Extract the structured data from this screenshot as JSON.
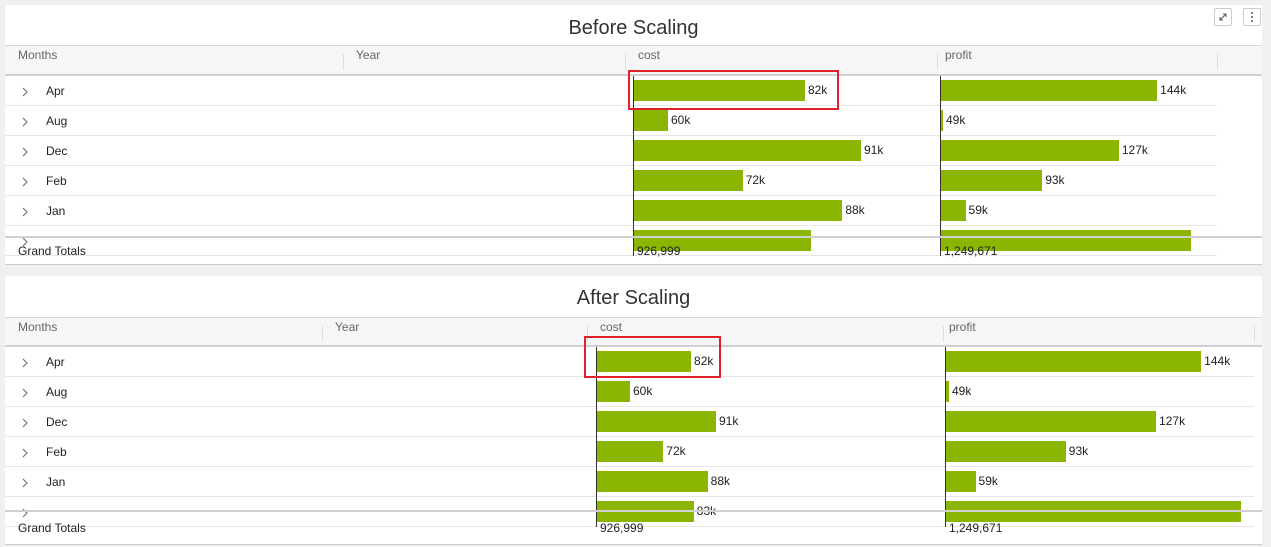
{
  "panels": [
    {
      "title": "Before Scaling",
      "columns": [
        "Months",
        "Year",
        "cost",
        "profit"
      ],
      "rows": [
        {
          "month": "Apr",
          "cost": 82000,
          "cost_label": "82k",
          "profit": 144000,
          "profit_label": "144k"
        },
        {
          "month": "Aug",
          "cost": 60000,
          "cost_label": "60k",
          "profit": 49000,
          "profit_label": "49k"
        },
        {
          "month": "Dec",
          "cost": 91000,
          "cost_label": "91k",
          "profit": 127000,
          "profit_label": "127k"
        },
        {
          "month": "Feb",
          "cost": 72000,
          "cost_label": "72k",
          "profit": 93000,
          "profit_label": "93k"
        },
        {
          "month": "Jan",
          "cost": 88000,
          "cost_label": "88k",
          "profit": 59000,
          "profit_label": "59k"
        },
        {
          "cost": 83000,
          "profit": 159000
        }
      ],
      "totals_label": "Grand Totals",
      "totals": [
        "926,999",
        "1,249,671"
      ]
    },
    {
      "title": "After Scaling",
      "columns": [
        "Months",
        "Year",
        "cost",
        "profit"
      ],
      "rows": [
        {
          "month": "Apr",
          "cost": 82000,
          "cost_label": "82k",
          "profit": 144000,
          "profit_label": "144k"
        },
        {
          "month": "Aug",
          "cost": 60000,
          "cost_label": "60k",
          "profit": 49000,
          "profit_label": "49k"
        },
        {
          "month": "Dec",
          "cost": 91000,
          "cost_label": "91k",
          "profit": 127000,
          "profit_label": "127k"
        },
        {
          "month": "Feb",
          "cost": 72000,
          "cost_label": "72k",
          "profit": 93000,
          "profit_label": "93k"
        },
        {
          "month": "Jan",
          "cost": 88000,
          "cost_label": "88k",
          "profit": 59000,
          "profit_label": "59k"
        },
        {
          "cost": 83000,
          "cost_label": "83k",
          "profit": 159000
        }
      ],
      "totals_label": "Grand Totals",
      "totals": [
        "926,999",
        "1,249,671"
      ]
    }
  ]
}
